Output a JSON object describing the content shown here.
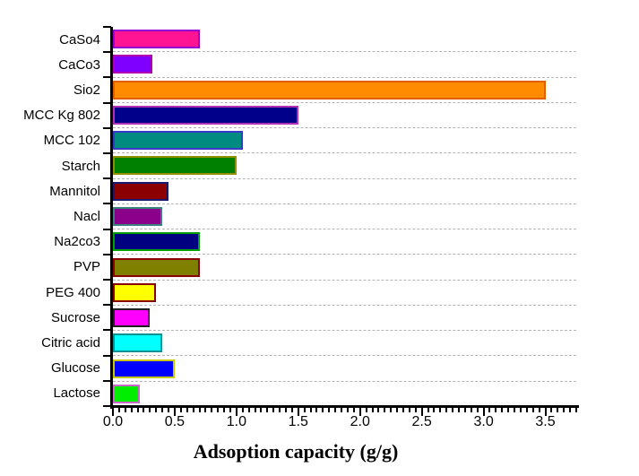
{
  "chart_data": {
    "type": "bar",
    "orientation": "horizontal",
    "title": "",
    "xlabel": "Adsoption capacity (g/g)",
    "ylabel": "",
    "xlim": [
      0,
      3.75
    ],
    "x_major_tick_step": 0.5,
    "x_minor_tick_step": 0.05,
    "x_tick_labels": [
      "0.0",
      "0.5",
      "1.0",
      "1.5",
      "2.0",
      "2.5",
      "3.0",
      "3.5"
    ],
    "grid": "horizontal-dashed",
    "grid_color": "#b4b4b4",
    "axis_color": "#000000",
    "background_color": "#ffffff",
    "legend": "none",
    "categories": [
      "CaSo4",
      "CaCo3",
      "Sio2",
      "MCC Kg 802",
      "MCC 102",
      "Starch",
      "Mannitol",
      "Nacl",
      "Na2co3",
      "PVP",
      "PEG 400",
      "Sucrose",
      "Citric acid",
      "Glucose",
      "Lactose"
    ],
    "values": [
      0.7,
      0.32,
      3.5,
      1.5,
      1.05,
      1.0,
      0.45,
      0.4,
      0.7,
      0.7,
      0.35,
      0.3,
      0.4,
      0.5,
      0.22
    ],
    "bar_fill_colors": [
      "#FF1493",
      "#7F00FF",
      "#FF8C00",
      "#00008B",
      "#008B80",
      "#008000",
      "#8B0000",
      "#8B008B",
      "#000080",
      "#808000",
      "#FFFF00",
      "#FF00FF",
      "#00FFFF",
      "#0000FF",
      "#00EE00"
    ],
    "bar_border_colors": [
      "#9400D3",
      "#B000B0",
      "#E06000",
      "#B030B0",
      "#3838C8",
      "#909000",
      "#191970",
      "#3A8080",
      "#00A000",
      "#8B0000",
      "#8B0000",
      "#202020",
      "#109090",
      "#C8C800",
      "#C868C8"
    ]
  }
}
